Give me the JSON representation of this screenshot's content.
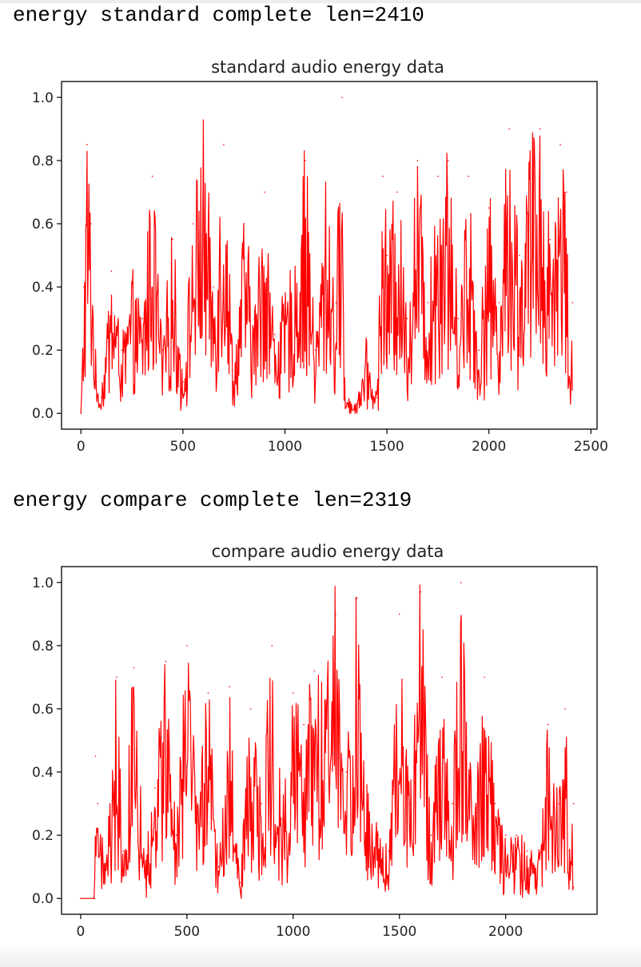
{
  "output": {
    "line1": "energy standard complete len=2410",
    "line2": "energy compare complete len=2319"
  },
  "colors": {
    "series": "#ff0000",
    "axes": "#000000",
    "text": "#222222"
  },
  "chart_data": [
    {
      "type": "line",
      "title": "standard audio energy data",
      "xlabel": "",
      "ylabel": "",
      "length": 2410,
      "xlim": [
        -95,
        2530
      ],
      "ylim": [
        -0.05,
        1.05
      ],
      "xticks": [
        0,
        500,
        1000,
        1500,
        2000,
        2500
      ],
      "xtick_labels": [
        "0",
        "500",
        "1000",
        "1500",
        "2000",
        "2500"
      ],
      "yticks": [
        0.0,
        0.2,
        0.4,
        0.6,
        0.8,
        1.0
      ],
      "ytick_labels": [
        "0.0",
        "0.2",
        "0.4",
        "0.6",
        "0.8",
        "1.0"
      ],
      "grid": false,
      "series": [
        {
          "color": "#ff0000",
          "x": [
            0,
            15,
            30,
            50,
            75,
            100,
            150,
            200,
            250,
            300,
            350,
            400,
            450,
            500,
            550,
            600,
            650,
            700,
            750,
            800,
            850,
            900,
            950,
            1000,
            1050,
            1100,
            1150,
            1200,
            1250,
            1280,
            1290,
            1310,
            1350,
            1400,
            1450,
            1480,
            1500,
            1550,
            1600,
            1650,
            1700,
            1750,
            1800,
            1850,
            1900,
            1950,
            2000,
            2050,
            2100,
            2150,
            2200,
            2250,
            2300,
            2350,
            2380,
            2400,
            2410
          ],
          "y": [
            0.0,
            0.4,
            0.85,
            0.6,
            0.1,
            0.05,
            0.45,
            0.2,
            0.4,
            0.3,
            0.75,
            0.2,
            0.55,
            0.1,
            0.6,
            0.85,
            0.4,
            0.85,
            0.1,
            0.6,
            0.3,
            0.7,
            0.25,
            0.35,
            0.45,
            0.8,
            0.2,
            0.7,
            0.35,
            1.0,
            0.1,
            0.02,
            0.03,
            0.2,
            0.05,
            0.75,
            0.5,
            0.7,
            0.3,
            0.8,
            0.35,
            0.75,
            0.8,
            0.3,
            0.75,
            0.2,
            0.65,
            0.35,
            0.9,
            0.5,
            0.8,
            0.9,
            0.55,
            0.85,
            0.7,
            0.05,
            0.35
          ]
        }
      ]
    },
    {
      "type": "line",
      "title": "compare audio energy data",
      "xlabel": "",
      "ylabel": "",
      "length": 2319,
      "xlim": [
        -90,
        2430
      ],
      "ylim": [
        -0.05,
        1.05
      ],
      "xticks": [
        0,
        500,
        1000,
        1500,
        2000
      ],
      "xtick_labels": [
        "0",
        "500",
        "1000",
        "1500",
        "2000"
      ],
      "yticks": [
        0.0,
        0.2,
        0.4,
        0.6,
        0.8,
        1.0
      ],
      "ytick_labels": [
        "0.0",
        "0.2",
        "0.4",
        "0.6",
        "0.8",
        "1.0"
      ],
      "grid": false,
      "series": [
        {
          "color": "#ff0000",
          "x": [
            0,
            60,
            65,
            70,
            80,
            120,
            170,
            200,
            250,
            300,
            350,
            400,
            450,
            500,
            550,
            600,
            650,
            700,
            750,
            800,
            850,
            900,
            950,
            1000,
            1050,
            1100,
            1150,
            1200,
            1250,
            1300,
            1350,
            1400,
            1450,
            1500,
            1550,
            1600,
            1650,
            1700,
            1750,
            1790,
            1850,
            1900,
            1950,
            2000,
            2050,
            2100,
            2150,
            2200,
            2250,
            2280,
            2300,
            2319
          ],
          "y": [
            0.0,
            0.0,
            0.0,
            0.45,
            0.3,
            0.1,
            0.7,
            0.15,
            0.73,
            0.1,
            0.35,
            0.75,
            0.2,
            0.8,
            0.3,
            0.65,
            0.1,
            0.67,
            0.05,
            0.6,
            0.3,
            0.8,
            0.25,
            0.65,
            0.55,
            0.72,
            0.6,
            0.9,
            0.4,
            0.95,
            0.3,
            0.2,
            0.15,
            0.9,
            0.3,
            0.97,
            0.2,
            0.7,
            0.3,
            1.0,
            0.25,
            0.7,
            0.3,
            0.2,
            0.2,
            0.15,
            0.1,
            0.55,
            0.3,
            0.6,
            0.15,
            0.3
          ]
        }
      ]
    }
  ]
}
